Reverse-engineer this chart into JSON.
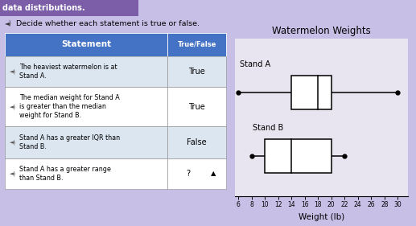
{
  "title": "Watermelon Weights",
  "xlabel": "Weight (lb)",
  "stand_a_label": "Stand A",
  "stand_b_label": "Stand B",
  "stand_a": {
    "min": 6,
    "q1": 14,
    "median": 18,
    "q3": 20,
    "max": 30
  },
  "stand_b": {
    "min": 8,
    "q1": 10,
    "median": 14,
    "q3": 20,
    "max": 22
  },
  "x_ticks": [
    6,
    8,
    10,
    12,
    14,
    16,
    18,
    20,
    22,
    24,
    26,
    28,
    30
  ],
  "xlim": [
    5.5,
    31.5
  ],
  "bg_color": "#c8bfe7",
  "plot_bg": "#e8e4f0",
  "table_header_bg": "#4472c4",
  "table_header_color": "#ffffff",
  "row_colors": [
    "#dce6f1",
    "#ffffff",
    "#dce6f1",
    "#ffffff"
  ],
  "border_color": "#888888",
  "statements": [
    "The heaviest watermelon is at\nStand A.",
    "The median weight for Stand A\nis greater than the median\nweight for Stand B.",
    "Stand A has a greater IQR than\nStand B.",
    "Stand A has a greater range\nthan Stand B."
  ],
  "answers": [
    "True",
    "True",
    "False",
    "?"
  ],
  "instruction": "Decide whether each statement is true or false.",
  "top_label": "data distributions.",
  "top_label_bg": "#7b5ea7"
}
